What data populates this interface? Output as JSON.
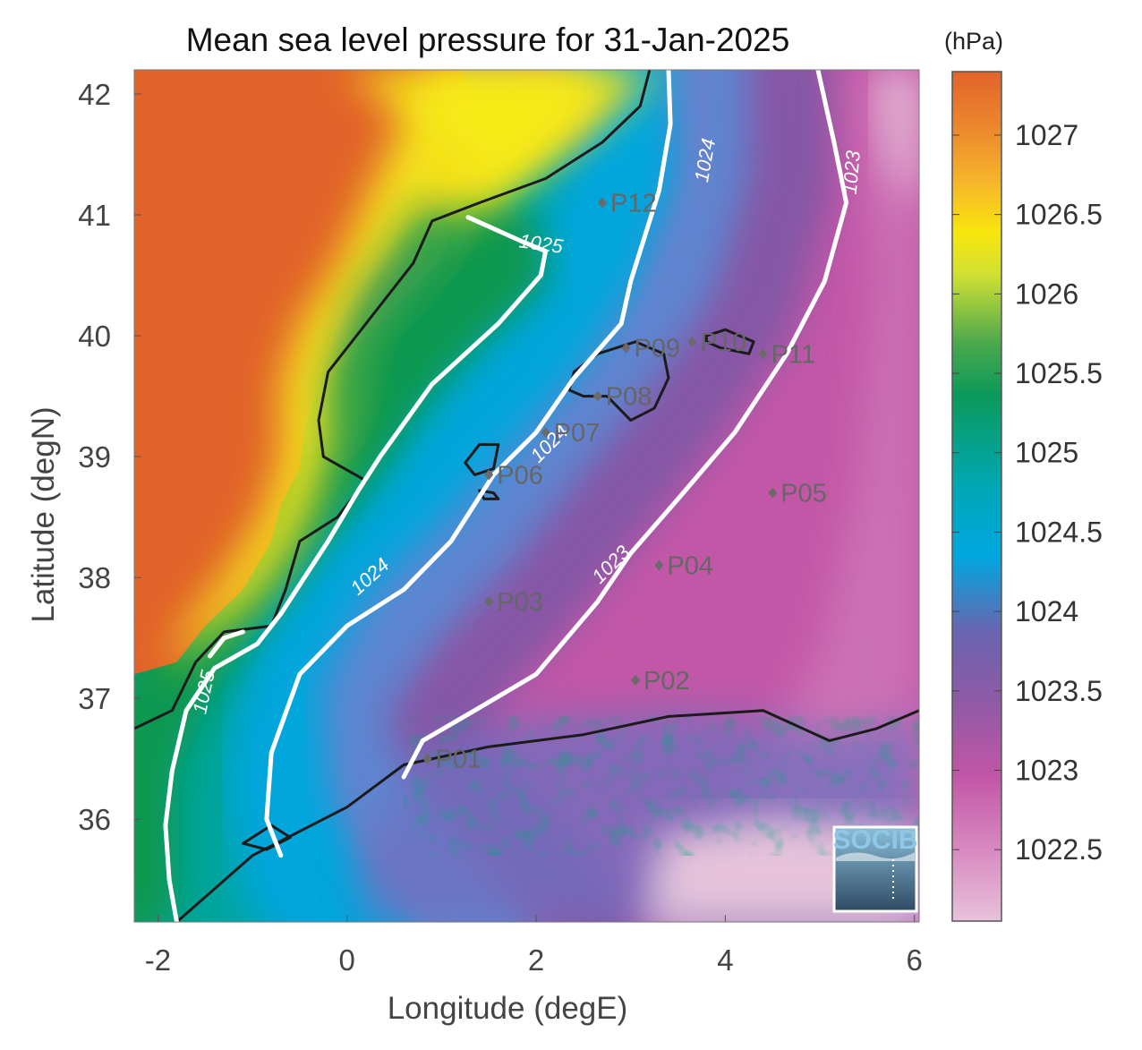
{
  "chart_data": {
    "type": "heatmap",
    "title": "Mean sea level pressure for 31-Jan-2025",
    "xlabel": "Longitude (degE)",
    "ylabel": "Latitude (degN)",
    "xlim": [
      -2.25,
      6.05
    ],
    "ylim": [
      35.15,
      42.2
    ],
    "x_ticks": [
      -2,
      0,
      2,
      4,
      6
    ],
    "y_ticks": [
      36,
      37,
      38,
      39,
      40,
      41,
      42
    ],
    "grid": false,
    "colorbar": {
      "unit": "(hPa)",
      "range": [
        1022.05,
        1027.4
      ],
      "ticks": [
        1022.5,
        1023,
        1023.5,
        1024,
        1024.5,
        1025,
        1025.5,
        1026,
        1026.5,
        1027
      ],
      "colors": [
        "#e7c2da",
        "#c256a6",
        "#7b5aa6",
        "#4a90d6",
        "#00a7d9",
        "#00a4a0",
        "#0c9a52",
        "#a2c940",
        "#f6e812",
        "#f7a92a",
        "#e4662a"
      ]
    },
    "contours": [
      {
        "level": 1025,
        "label": "1025",
        "points": [
          [
            1.28,
            40.98
          ],
          [
            1.88,
            40.77
          ],
          [
            2.1,
            40.7
          ],
          [
            2.05,
            40.5
          ],
          [
            1.6,
            40.1
          ],
          [
            0.9,
            39.6
          ],
          [
            0.35,
            39.0
          ],
          [
            0.12,
            38.72
          ],
          [
            -0.2,
            38.3
          ],
          [
            -0.45,
            38.0
          ],
          [
            -0.7,
            37.7
          ],
          [
            -0.95,
            37.45
          ],
          [
            -1.4,
            37.25
          ],
          [
            -1.7,
            36.9
          ],
          [
            -1.85,
            36.4
          ],
          [
            -1.92,
            35.95
          ],
          [
            -1.88,
            35.5
          ],
          [
            -1.8,
            35.15
          ]
        ],
        "label_at": [
          2.05,
          40.75
        ],
        "label_rot": 8
      },
      {
        "level": 1025,
        "label": "1025",
        "points": [
          [
            -1.45,
            37.35
          ],
          [
            -1.3,
            37.5
          ],
          [
            -1.1,
            37.55
          ]
        ],
        "label_at": [
          -1.5,
          37.05
        ],
        "label_rot": -78
      },
      {
        "level": 1024,
        "label": "1024",
        "points": [
          [
            3.4,
            42.2
          ],
          [
            3.42,
            41.75
          ],
          [
            3.3,
            41.2
          ],
          [
            3.0,
            40.45
          ],
          [
            2.9,
            40.1
          ],
          [
            2.4,
            39.65
          ],
          [
            2.0,
            39.2
          ],
          [
            1.55,
            38.85
          ],
          [
            1.1,
            38.3
          ],
          [
            0.6,
            37.9
          ],
          [
            0.0,
            37.6
          ],
          [
            -0.5,
            37.2
          ],
          [
            -0.8,
            36.55
          ],
          [
            -0.85,
            36.0
          ],
          [
            -0.7,
            35.7
          ]
        ],
        "label_at": [
          3.8,
          41.45
        ],
        "label_rot": -80,
        "label_at_2": [
          2.15,
          39.1
        ],
        "label_rot_2": -45,
        "label_at_3": [
          0.25,
          38.0
        ],
        "label_rot_3": -42
      },
      {
        "level": 1023,
        "label": "1023",
        "points": [
          [
            4.98,
            42.2
          ],
          [
            5.15,
            41.6
          ],
          [
            5.28,
            41.1
          ],
          [
            5.05,
            40.45
          ],
          [
            4.65,
            39.85
          ],
          [
            4.1,
            39.2
          ],
          [
            3.5,
            38.65
          ],
          [
            3.0,
            38.2
          ],
          [
            2.65,
            37.8
          ],
          [
            2.0,
            37.2
          ],
          [
            1.35,
            36.9
          ],
          [
            0.8,
            36.65
          ],
          [
            0.6,
            36.35
          ]
        ],
        "label_at": [
          5.35,
          41.35
        ],
        "label_rot": -85,
        "label_at_2": [
          2.8,
          38.1
        ],
        "label_rot_2": -45
      }
    ],
    "points": [
      {
        "label": "P01",
        "lon": 0.85,
        "lat": 36.5
      },
      {
        "label": "P02",
        "lon": 3.05,
        "lat": 37.15
      },
      {
        "label": "P03",
        "lon": 1.5,
        "lat": 37.8
      },
      {
        "label": "P04",
        "lon": 3.3,
        "lat": 38.1
      },
      {
        "label": "P05",
        "lon": 4.5,
        "lat": 38.7
      },
      {
        "label": "P06",
        "lon": 1.5,
        "lat": 38.85
      },
      {
        "label": "P07",
        "lon": 2.1,
        "lat": 39.2
      },
      {
        "label": "P08",
        "lon": 2.65,
        "lat": 39.5
      },
      {
        "label": "P09",
        "lon": 2.95,
        "lat": 39.9
      },
      {
        "label": "P10",
        "lon": 3.65,
        "lat": 39.95
      },
      {
        "label": "P11",
        "lon": 4.4,
        "lat": 39.85
      },
      {
        "label": "P12",
        "lon": 2.7,
        "lat": 41.1
      }
    ]
  },
  "logo": {
    "text": "SOCIB"
  }
}
